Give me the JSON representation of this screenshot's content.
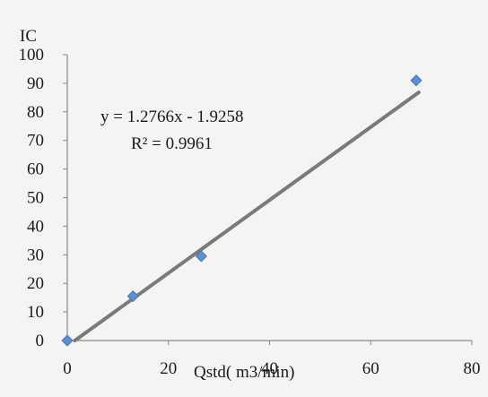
{
  "chart_data": {
    "type": "scatter",
    "title": "",
    "xlabel": "Qstd( m3/min)",
    "ylabel": "IC",
    "xlim": [
      0,
      80
    ],
    "ylim": [
      0,
      100
    ],
    "xticks": [
      "0",
      "20",
      "40",
      "60",
      "80"
    ],
    "yticks": [
      "0",
      "10",
      "20",
      "30",
      "40",
      "50",
      "60",
      "70",
      "80",
      "90",
      "100"
    ],
    "grid": false,
    "legend": "none",
    "series": [
      {
        "points": [
          {
            "x": 0,
            "y": 0
          },
          {
            "x": 13,
            "y": 15.5
          },
          {
            "x": 26.5,
            "y": 29.5
          },
          {
            "x": 69,
            "y": 91
          }
        ],
        "color": "#5b8fd1"
      }
    ],
    "trendline": {
      "slope": 1.2766,
      "intercept": -1.9258,
      "x_range": [
        1.5,
        69.5
      ],
      "color": "#7a7a7a"
    },
    "annotations": {
      "equation": "y = 1.2766x - 1.9258",
      "r_squared": "R² = 0.9961"
    }
  }
}
